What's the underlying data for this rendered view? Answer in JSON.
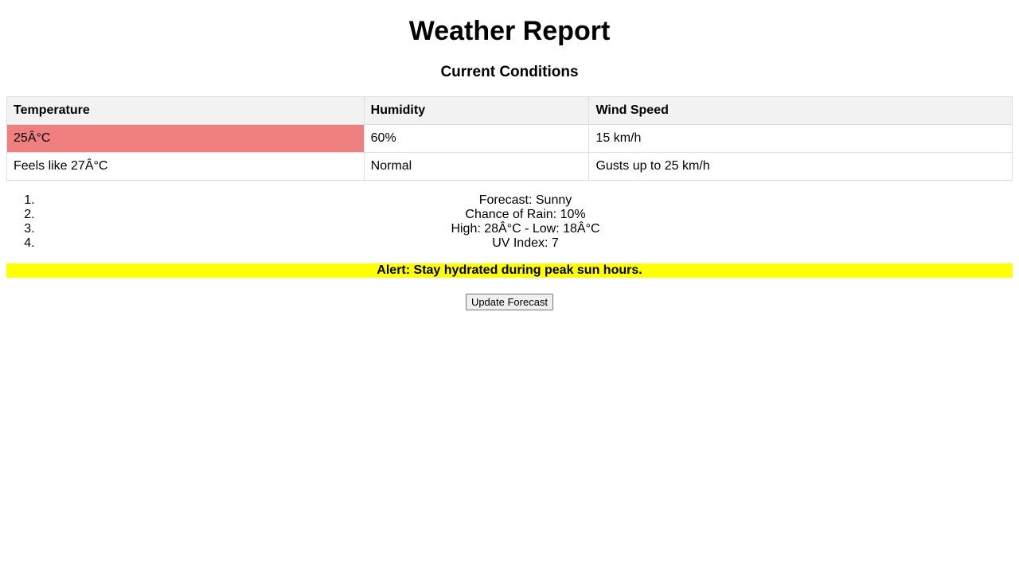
{
  "page": {
    "title": "Weather Report",
    "subtitle": "Current Conditions"
  },
  "table": {
    "headers": [
      "Temperature",
      "Humidity",
      "Wind Speed"
    ],
    "rows": [
      [
        "25Â°C",
        "60%",
        "15 km/h"
      ],
      [
        "Feels like 27Â°C",
        "Normal",
        "Gusts up to 25 km/h"
      ]
    ]
  },
  "forecast": {
    "items": [
      "Forecast: Sunny",
      "Chance of Rain: 10%",
      "High: 28Â°C - Low: 18Â°C",
      "UV Index: 7"
    ]
  },
  "alert": {
    "text": "Alert: Stay hydrated during peak sun hours."
  },
  "actions": {
    "update_label": "Update Forecast"
  },
  "colors": {
    "temperature_highlight": "#f08080",
    "alert_background": "#ffff00",
    "header_background": "#f2f2f2"
  }
}
